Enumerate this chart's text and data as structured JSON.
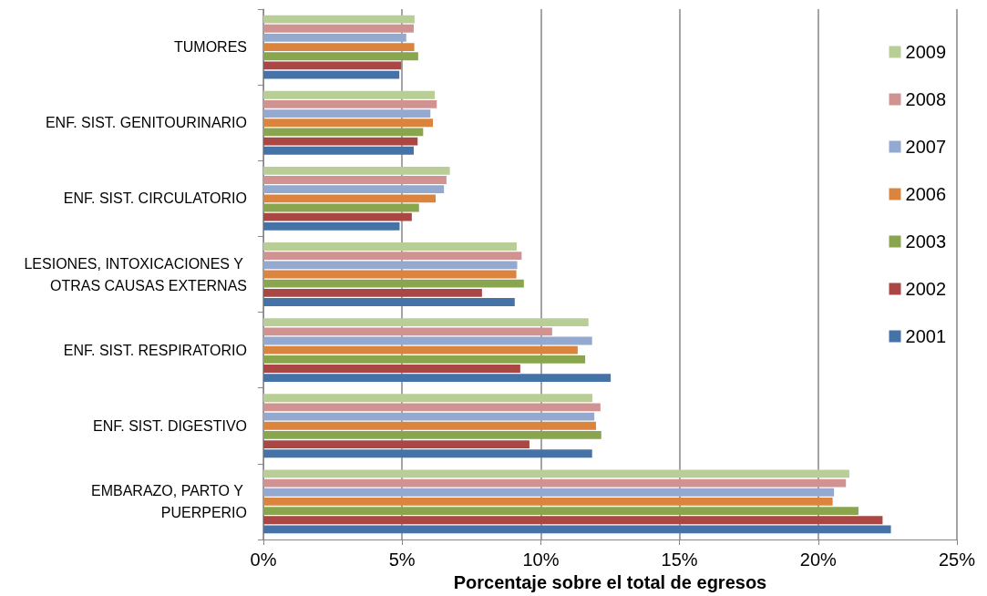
{
  "chart_data": {
    "type": "bar",
    "orientation": "horizontal",
    "xlabel": "Porcentaje sobre el total de egresos",
    "categories": [
      "TUMORES",
      "ENF. SIST. GENITOURINARIO",
      "ENF. SIST. CIRCULATORIO",
      "LESIONES, INTOXICACIONES Y OTRAS CAUSAS EXTERNAS",
      "ENF. SIST. RESPIRATORIO",
      "ENF. SIST. DIGESTIVO",
      "EMBARAZO, PARTO Y PUERPERIO"
    ],
    "series": [
      {
        "name": "2009",
        "color": "#b9cd96",
        "values": [
          5.45,
          6.18,
          6.72,
          9.13,
          11.72,
          11.86,
          21.12
        ]
      },
      {
        "name": "2008",
        "color": "#d19392",
        "values": [
          5.42,
          6.25,
          6.6,
          9.31,
          10.41,
          12.15,
          21.0
        ]
      },
      {
        "name": "2007",
        "color": "#93a9cf",
        "values": [
          5.15,
          6.02,
          6.51,
          9.15,
          11.85,
          11.93,
          20.57
        ]
      },
      {
        "name": "2006",
        "color": "#db843d",
        "values": [
          5.44,
          6.11,
          6.21,
          9.12,
          11.33,
          11.99,
          20.52
        ]
      },
      {
        "name": "2003",
        "color": "#89a54e",
        "values": [
          5.58,
          5.76,
          5.61,
          9.39,
          11.6,
          12.18,
          21.45
        ]
      },
      {
        "name": "2002",
        "color": "#aa4643",
        "values": [
          4.97,
          5.56,
          5.35,
          7.88,
          9.26,
          9.59,
          22.32
        ]
      },
      {
        "name": "2001",
        "color": "#4572a7",
        "values": [
          4.9,
          5.42,
          4.91,
          9.06,
          12.52,
          11.85,
          22.62
        ]
      }
    ],
    "xlim": [
      0,
      25
    ],
    "xticks": [
      {
        "value": 0,
        "label": "0%"
      },
      {
        "value": 5,
        "label": "5%"
      },
      {
        "value": 10,
        "label": "10%"
      },
      {
        "value": 15,
        "label": "15%"
      },
      {
        "value": 20,
        "label": "20%"
      },
      {
        "value": 25,
        "label": "25%"
      }
    ],
    "grid": "x",
    "legend": "top right"
  }
}
